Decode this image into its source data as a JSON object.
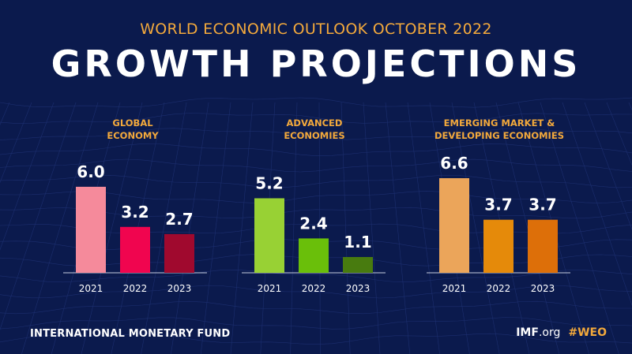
{
  "header": {
    "subtitle": "WORLD ECONOMIC OUTLOOK OCTOBER 2022",
    "title": "GROWTH PROJECTIONS"
  },
  "footer": {
    "organization": "INTERNATIONAL MONETARY FUND",
    "site_bold": "IMF",
    "site_suffix": ".org",
    "hashtag": "#WEO"
  },
  "colors": {
    "background": "#0b1a4d",
    "heading_accent": "#f3a93c",
    "label_text": "#ffffff",
    "axis": "#c7cde0"
  },
  "chart_data": [
    {
      "type": "bar",
      "title_lines": [
        "GLOBAL",
        "ECONOMY"
      ],
      "categories": [
        "2021",
        "2022",
        "2023"
      ],
      "values": [
        6.0,
        3.2,
        2.7
      ],
      "labels": [
        "6.0",
        "3.2",
        "2.7"
      ],
      "colors": [
        "#f58a9b",
        "#f0054f",
        "#a0092e"
      ],
      "ylim": [
        0,
        6.6
      ]
    },
    {
      "type": "bar",
      "title_lines": [
        "ADVANCED",
        "ECONOMIES"
      ],
      "categories": [
        "2021",
        "2022",
        "2023"
      ],
      "values": [
        5.2,
        2.4,
        1.1
      ],
      "labels": [
        "5.2",
        "2.4",
        "1.1"
      ],
      "colors": [
        "#98d134",
        "#6abf0a",
        "#487b0f"
      ],
      "ylim": [
        0,
        6.6
      ]
    },
    {
      "type": "bar",
      "title_lines": [
        "EMERGING MARKET &",
        "DEVELOPING ECONOMIES"
      ],
      "categories": [
        "2021",
        "2022",
        "2023"
      ],
      "values": [
        6.6,
        3.7,
        3.7
      ],
      "labels": [
        "6.6",
        "3.7",
        "3.7"
      ],
      "colors": [
        "#eba55a",
        "#e58a0a",
        "#dd6f09"
      ],
      "ylim": [
        0,
        6.6
      ]
    }
  ]
}
